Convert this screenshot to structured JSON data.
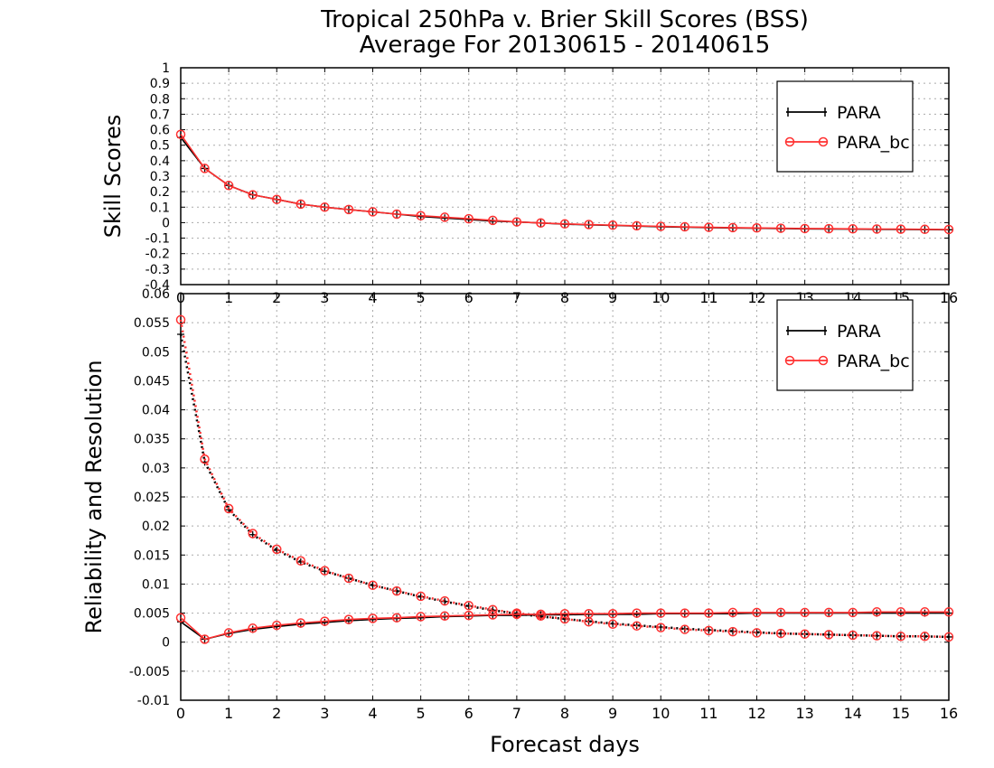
{
  "title_line1": "Tropical 250hPa v. Brier Skill Scores (BSS)",
  "title_line2": "Average For 20130615 - 20140615",
  "xlabel": "Forecast days",
  "colors": {
    "para": "#000000",
    "para_bc": "#ff3030",
    "grid": "#aaaaaa"
  },
  "chart_data": [
    {
      "type": "line",
      "ylabel": "Skill Scores",
      "ylim": [
        -0.4,
        1
      ],
      "yticks": [
        "-0.4",
        "-0.3",
        "-0.2",
        "-0.1",
        "0",
        "0.1",
        "0.2",
        "0.3",
        "0.4",
        "0.5",
        "0.6",
        "0.7",
        "0.8",
        "0.9",
        "1"
      ],
      "xlim": [
        0,
        16
      ],
      "xticks": [
        "0",
        "1",
        "2",
        "3",
        "4",
        "5",
        "6",
        "7",
        "8",
        "9",
        "10",
        "11",
        "12",
        "13",
        "14",
        "15",
        "16"
      ],
      "legend": {
        "placement": "top-right",
        "entries": [
          "PARA",
          "PARA_bc"
        ]
      },
      "x": [
        0,
        0.5,
        1,
        1.5,
        2,
        2.5,
        3,
        3.5,
        4,
        4.5,
        5,
        5.5,
        6,
        6.5,
        7,
        7.5,
        8,
        8.5,
        9,
        9.5,
        10,
        10.5,
        11,
        11.5,
        12,
        12.5,
        13,
        13.5,
        14,
        14.5,
        15,
        15.5,
        16
      ],
      "series": [
        {
          "name": "PARA",
          "style": "solid",
          "marker": "plus",
          "values": [
            0.55,
            0.35,
            0.24,
            0.18,
            0.15,
            0.12,
            0.1,
            0.085,
            0.07,
            0.055,
            0.04,
            0.03,
            0.02,
            0.01,
            0.005,
            -0.002,
            -0.01,
            -0.014,
            -0.018,
            -0.022,
            -0.026,
            -0.029,
            -0.032,
            -0.034,
            -0.036,
            -0.038,
            -0.04,
            -0.041,
            -0.042,
            -0.043,
            -0.044,
            -0.045,
            -0.046
          ]
        },
        {
          "name": "PARA_bc",
          "style": "solid",
          "marker": "circle",
          "values": [
            0.57,
            0.35,
            0.24,
            0.18,
            0.15,
            0.12,
            0.1,
            0.085,
            0.07,
            0.055,
            0.045,
            0.035,
            0.025,
            0.015,
            0.005,
            -0.002,
            -0.008,
            -0.012,
            -0.016,
            -0.02,
            -0.024,
            -0.027,
            -0.03,
            -0.032,
            -0.034,
            -0.036,
            -0.038,
            -0.039,
            -0.04,
            -0.041,
            -0.042,
            -0.043,
            -0.044
          ]
        }
      ]
    },
    {
      "type": "line",
      "ylabel": "Reliability and Resolution",
      "ylim": [
        -0.01,
        0.06
      ],
      "yticks": [
        "-0.01",
        "-0.005",
        "0",
        "0.005",
        "0.01",
        "0.015",
        "0.02",
        "0.025",
        "0.03",
        "0.035",
        "0.04",
        "0.045",
        "0.05",
        "0.055",
        "0.06"
      ],
      "xlim": [
        0,
        16
      ],
      "xticks": [
        "0",
        "1",
        "2",
        "3",
        "4",
        "5",
        "6",
        "7",
        "8",
        "9",
        "10",
        "11",
        "12",
        "13",
        "14",
        "15",
        "16"
      ],
      "legend": {
        "placement": "top-right",
        "entries": [
          "PARA",
          "PARA_bc"
        ]
      },
      "x": [
        0,
        0.5,
        1,
        1.5,
        2,
        2.5,
        3,
        3.5,
        4,
        4.5,
        5,
        5.5,
        6,
        6.5,
        7,
        7.5,
        8,
        8.5,
        9,
        9.5,
        10,
        10.5,
        11,
        11.5,
        12,
        12.5,
        13,
        13.5,
        14,
        14.5,
        15,
        15.5,
        16
      ],
      "series": [
        {
          "name": "PARA",
          "style": "dotted",
          "marker": "plus",
          "values": [
            0.053,
            0.031,
            0.0228,
            0.0185,
            0.0158,
            0.0138,
            0.0122,
            0.011,
            0.0098,
            0.0088,
            0.0078,
            0.007,
            0.0062,
            0.0055,
            0.0049,
            0.0044,
            0.004,
            0.0036,
            0.0032,
            0.0029,
            0.0026,
            0.0023,
            0.0021,
            0.0019,
            0.0017,
            0.0015,
            0.0014,
            0.0013,
            0.0012,
            0.0011,
            0.001,
            0.001,
            0.0009
          ]
        },
        {
          "name": "PARA_bc",
          "style": "dotted",
          "marker": "circle",
          "values": [
            0.0555,
            0.0315,
            0.023,
            0.0187,
            0.016,
            0.014,
            0.0123,
            0.011,
            0.0098,
            0.0088,
            0.0079,
            0.0071,
            0.0063,
            0.0056,
            0.005,
            0.0045,
            0.004,
            0.0035,
            0.0031,
            0.0028,
            0.0025,
            0.0022,
            0.002,
            0.0018,
            0.0016,
            0.0015,
            0.0014,
            0.0013,
            0.0012,
            0.0011,
            0.001,
            0.001,
            0.0009
          ]
        },
        {
          "name": "PARA",
          "style": "solid",
          "marker": "plus",
          "values": [
            0.0035,
            0.0005,
            0.0015,
            0.0022,
            0.0027,
            0.0031,
            0.0034,
            0.0037,
            0.0039,
            0.0041,
            0.0042,
            0.0044,
            0.0045,
            0.0046,
            0.0046,
            0.0047,
            0.0047,
            0.0048,
            0.0048,
            0.0048,
            0.0049,
            0.0049,
            0.0049,
            0.0049,
            0.005,
            0.005,
            0.005,
            0.005,
            0.005,
            0.005,
            0.005,
            0.005,
            0.005
          ]
        },
        {
          "name": "PARA_bc",
          "style": "solid",
          "marker": "circle",
          "values": [
            0.0042,
            0.0005,
            0.0016,
            0.0024,
            0.0029,
            0.0033,
            0.0036,
            0.0039,
            0.0041,
            0.0042,
            0.0044,
            0.0045,
            0.0046,
            0.0047,
            0.0048,
            0.0048,
            0.0049,
            0.0049,
            0.0049,
            0.005,
            0.005,
            0.005,
            0.005,
            0.0051,
            0.0051,
            0.0051,
            0.0051,
            0.0051,
            0.0051,
            0.0052,
            0.0052,
            0.0052,
            0.0052
          ]
        }
      ]
    }
  ]
}
